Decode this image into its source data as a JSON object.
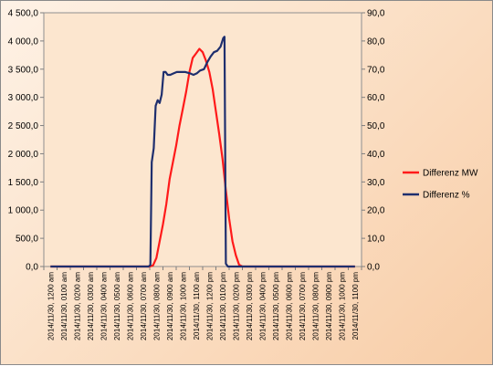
{
  "chart_data": {
    "type": "line",
    "x": [
      "2014/11/30, 1200 am",
      "2014/11/30, 0100 am",
      "2014/11/30, 0200 am",
      "2014/11/30, 0300 am",
      "2014/11/30, 0400 am",
      "2014/11/30, 0500 am",
      "2014/11/30, 0600 am",
      "2014/11/30, 0700 am",
      "2014/11/30, 0800 am",
      "2014/11/30, 0900 am",
      "2014/11/30, 1000 am",
      "2014/11/30, 1100 am",
      "2014/11/30, 1200 pm",
      "2014/11/30, 0100 pm",
      "2014/11/30, 0200 pm",
      "2014/11/30, 0300 pm",
      "2014/11/30, 0400 pm",
      "2014/11/30, 0500 pm",
      "2014/11/30, 0600 pm",
      "2014/11/30, 0700 pm",
      "2014/11/30, 0800 pm",
      "2014/11/30, 0900 pm",
      "2014/11/30, 1000 pm",
      "2014/11/30, 1100 pm"
    ],
    "ylim": [
      0,
      4500
    ],
    "y2lim": [
      0,
      90
    ],
    "yticks": [
      "0,0",
      "500,0",
      "1 000,0",
      "1 500,0",
      "2 000,0",
      "2 500,0",
      "3 000,0",
      "3 500,0",
      "4 000,0",
      "4 500,0"
    ],
    "y2ticks": [
      "0,0",
      "10,0",
      "20,0",
      "30,0",
      "40,0",
      "50,0",
      "60,0",
      "70,0",
      "80,0",
      "90,0"
    ],
    "grid": false,
    "legend_position": "right",
    "series": [
      {
        "name": "Differenz MW",
        "axis": "left",
        "color": "#ff1a1a",
        "points": [
          [
            0,
            0
          ],
          [
            7.5,
            0
          ],
          [
            7.75,
            20
          ],
          [
            8,
            150
          ],
          [
            8.25,
            450
          ],
          [
            8.5,
            750
          ],
          [
            8.75,
            1100
          ],
          [
            9,
            1550
          ],
          [
            9.25,
            1850
          ],
          [
            9.5,
            2150
          ],
          [
            9.75,
            2500
          ],
          [
            10,
            2800
          ],
          [
            10.25,
            3100
          ],
          [
            10.5,
            3450
          ],
          [
            10.75,
            3700
          ],
          [
            11,
            3780
          ],
          [
            11.25,
            3860
          ],
          [
            11.5,
            3800
          ],
          [
            11.75,
            3650
          ],
          [
            12,
            3450
          ],
          [
            12.25,
            3150
          ],
          [
            12.5,
            2750
          ],
          [
            12.75,
            2350
          ],
          [
            13,
            1900
          ],
          [
            13.25,
            1350
          ],
          [
            13.5,
            850
          ],
          [
            13.75,
            450
          ],
          [
            14,
            200
          ],
          [
            14.25,
            30
          ],
          [
            14.5,
            0
          ],
          [
            23,
            0
          ]
        ]
      },
      {
        "name": "Differenz %",
        "axis": "right",
        "color": "#1f2f6e",
        "points": [
          [
            0,
            0
          ],
          [
            7.4,
            0
          ],
          [
            7.55,
            0.5
          ],
          [
            7.65,
            37
          ],
          [
            7.8,
            42
          ],
          [
            7.95,
            57
          ],
          [
            8.1,
            59
          ],
          [
            8.25,
            58
          ],
          [
            8.4,
            61
          ],
          [
            8.55,
            69
          ],
          [
            8.7,
            69
          ],
          [
            8.85,
            68
          ],
          [
            9.05,
            68
          ],
          [
            9.3,
            68.5
          ],
          [
            9.55,
            69
          ],
          [
            9.9,
            69
          ],
          [
            10.2,
            69
          ],
          [
            10.55,
            68.5
          ],
          [
            10.8,
            68
          ],
          [
            11.05,
            68.5
          ],
          [
            11.3,
            69.5
          ],
          [
            11.6,
            70
          ],
          [
            11.85,
            72.5
          ],
          [
            12.1,
            74.5
          ],
          [
            12.35,
            76
          ],
          [
            12.6,
            76.5
          ],
          [
            12.85,
            78
          ],
          [
            13.05,
            81
          ],
          [
            13.15,
            81.5
          ],
          [
            13.25,
            1
          ],
          [
            13.4,
            0
          ],
          [
            23,
            0
          ]
        ]
      }
    ]
  }
}
